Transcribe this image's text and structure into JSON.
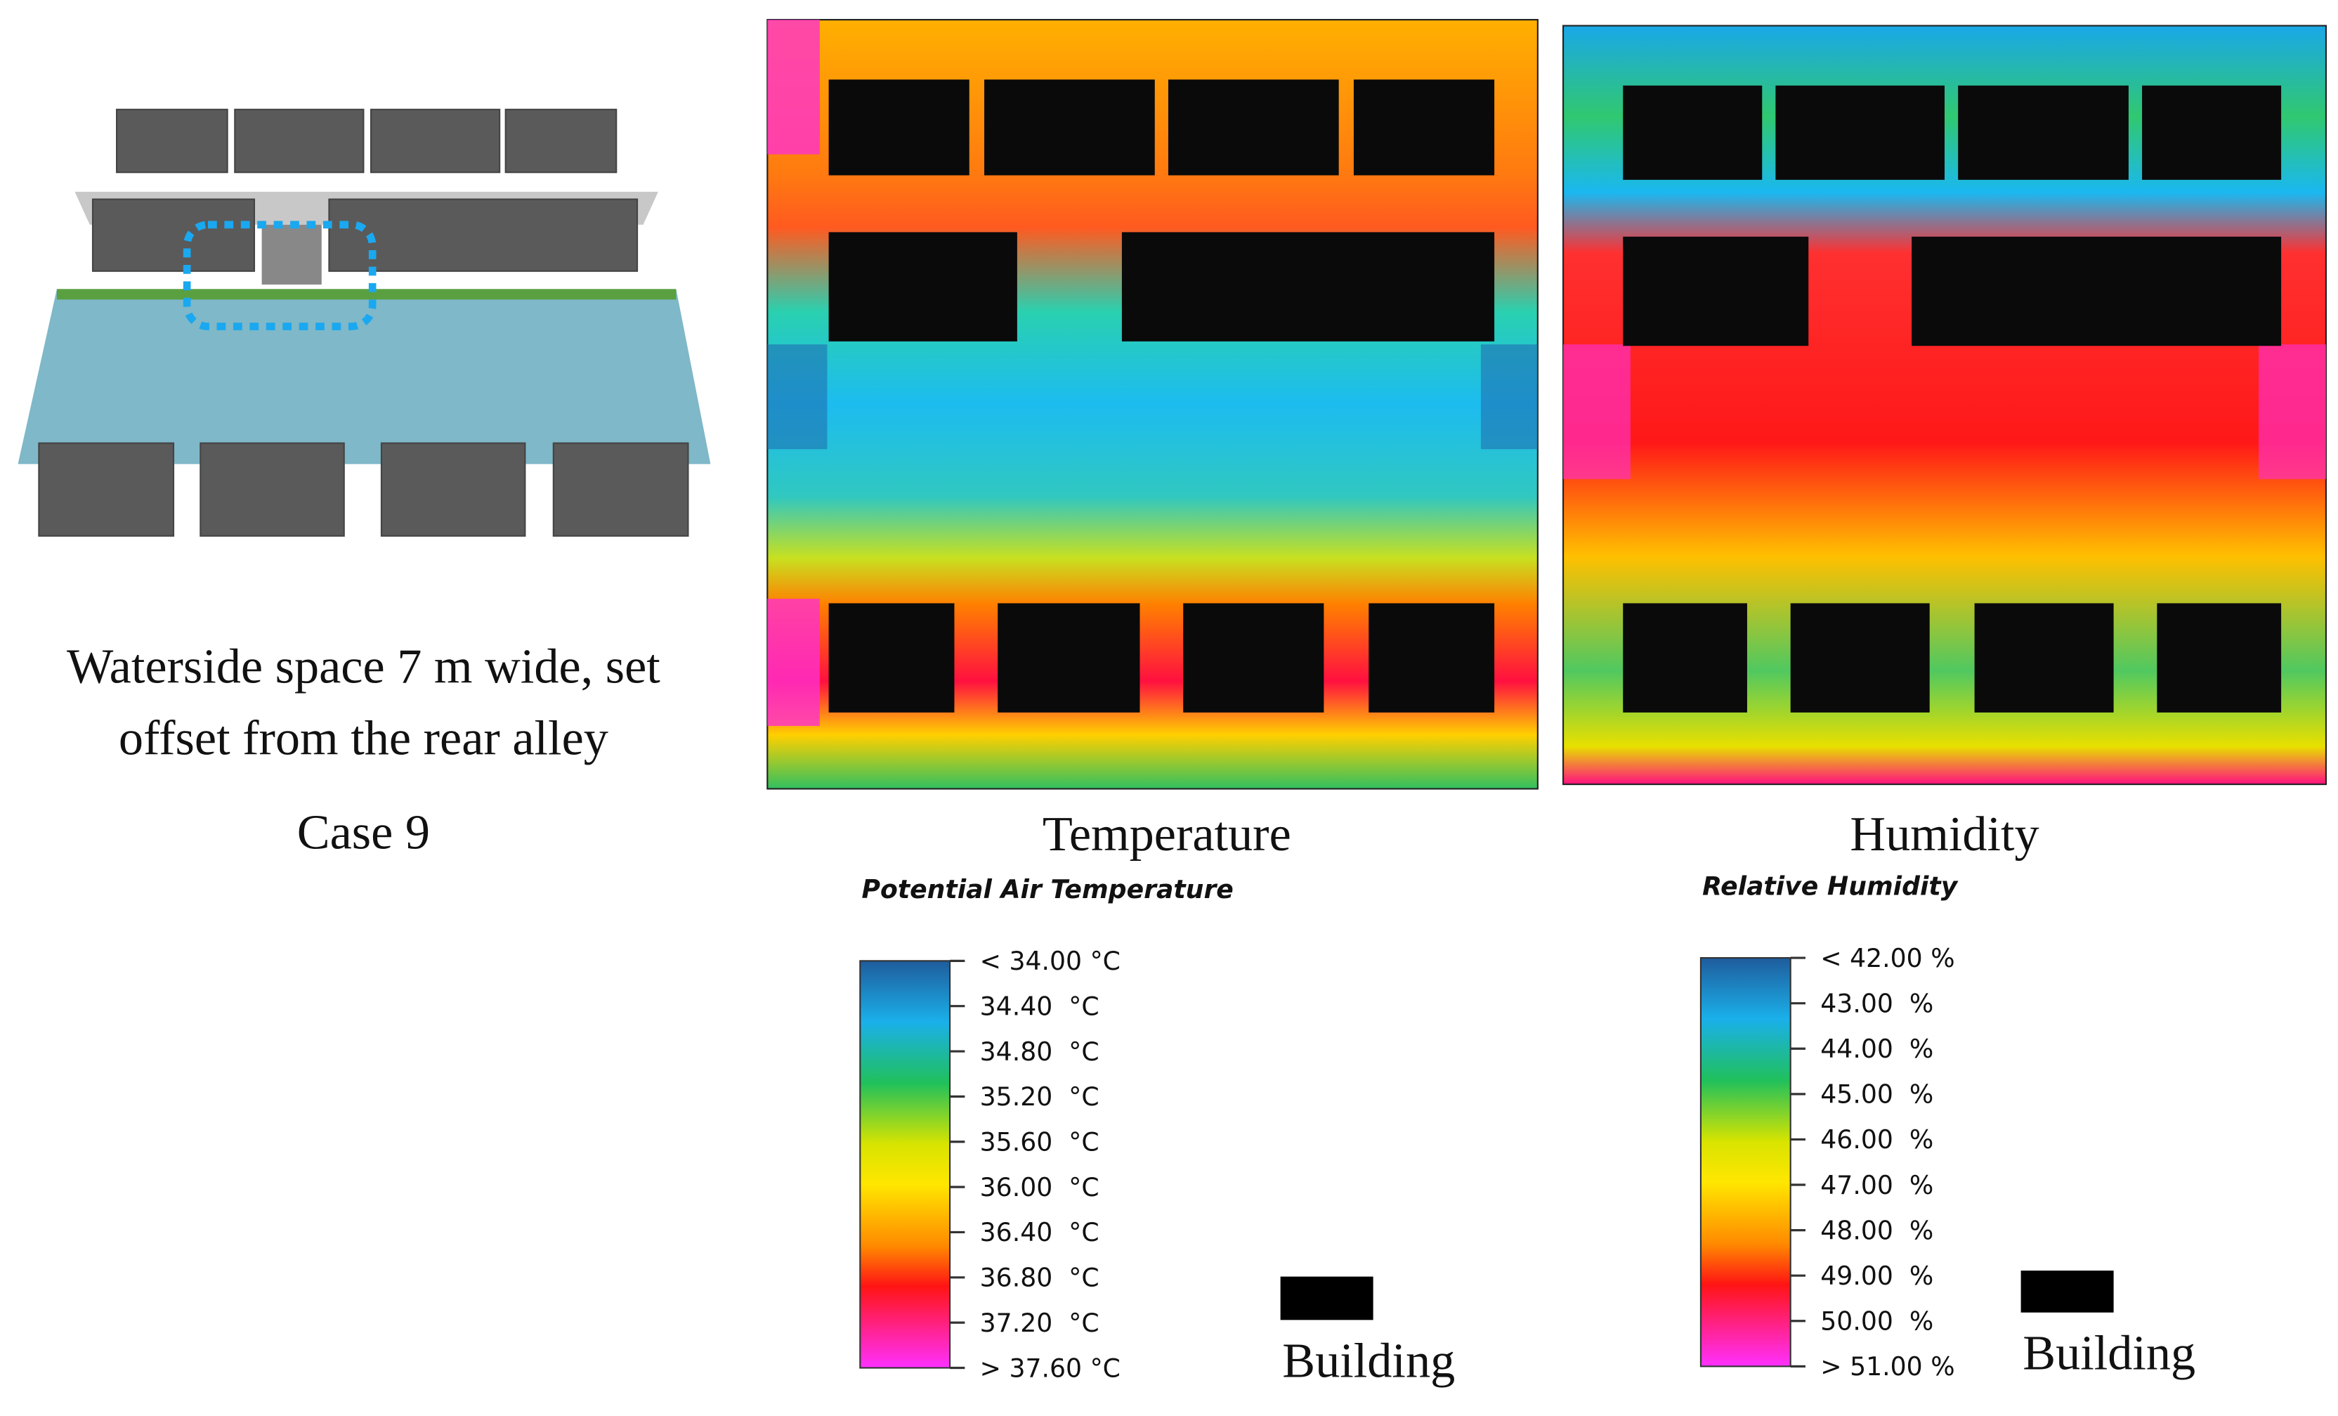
{
  "scheme": {
    "caption_lines": [
      "Waterside space 7 m wide, set",
      "offset from the rear alley"
    ],
    "case": "Case 9"
  },
  "panels": [
    {
      "label": "Temperature",
      "legend_title": "Potential Air Temperature",
      "legend_labels": [
        "< 34.00 °C",
        "34.40  °C",
        "34.80  °C",
        "35.20  °C",
        "35.60  °C",
        "36.00  °C",
        "36.40  °C",
        "36.80  °C",
        "37.20  °C",
        "> 37.60 °C"
      ],
      "building": "Building"
    },
    {
      "label": "Humidity",
      "legend_title": "Relative Humidity",
      "legend_labels": [
        "< 42.00 %",
        "43.00  %",
        "44.00  %",
        "45.00  %",
        "46.00  %",
        "47.00  %",
        "48.00  %",
        "49.00  %",
        "50.00  %",
        "> 51.00 %"
      ],
      "building": "Building"
    }
  ]
}
